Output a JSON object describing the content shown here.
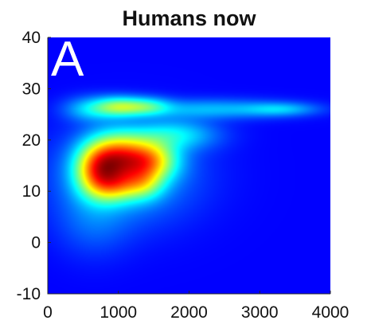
{
  "chart_data": {
    "type": "heatmap",
    "title": "Humans now",
    "panel_label": "A",
    "xlabel": "",
    "ylabel": "",
    "xlim": [
      0,
      4000
    ],
    "ylim": [
      -10,
      40
    ],
    "x_ticks": [
      0,
      1000,
      2000,
      3000,
      4000
    ],
    "y_ticks": [
      -10,
      0,
      10,
      20,
      30,
      40
    ],
    "x_tick_labels": [
      "0",
      "1000",
      "2000",
      "3000",
      "4000"
    ],
    "y_tick_labels": [
      "-10",
      "0",
      "10",
      "20",
      "30",
      "40"
    ],
    "colormap": "jet",
    "background_color": "#00008f",
    "grid": false,
    "density_components": [
      {
        "x": 1000,
        "y": 16.5,
        "sx": 280,
        "sy": 3.2,
        "w": 1.0
      },
      {
        "x": 1450,
        "y": 16.0,
        "sx": 260,
        "sy": 2.6,
        "w": 0.82
      },
      {
        "x": 700,
        "y": 14.0,
        "sx": 220,
        "sy": 3.4,
        "w": 0.85
      },
      {
        "x": 950,
        "y": 11.0,
        "sx": 230,
        "sy": 2.2,
        "w": 0.5
      },
      {
        "x": 1350,
        "y": 11.5,
        "sx": 200,
        "sy": 2.2,
        "w": 0.45
      },
      {
        "x": 1000,
        "y": 26.5,
        "sx": 230,
        "sy": 1.3,
        "w": 0.58
      },
      {
        "x": 1400,
        "y": 26.5,
        "sx": 230,
        "sy": 1.2,
        "w": 0.42
      },
      {
        "x": 2300,
        "y": 26.0,
        "sx": 700,
        "sy": 1.3,
        "w": 0.28
      },
      {
        "x": 3300,
        "y": 26.0,
        "sx": 350,
        "sy": 0.9,
        "w": 0.26
      },
      {
        "x": 600,
        "y": 26.0,
        "sx": 250,
        "sy": 1.6,
        "w": 0.3
      },
      {
        "x": 1800,
        "y": 21.0,
        "sx": 400,
        "sy": 2.0,
        "w": 0.35
      },
      {
        "x": 1100,
        "y": 13.0,
        "sx": 650,
        "sy": 6.0,
        "w": 0.28
      },
      {
        "x": 650,
        "y": 4.0,
        "sx": 350,
        "sy": 4.5,
        "w": 0.12
      }
    ]
  }
}
